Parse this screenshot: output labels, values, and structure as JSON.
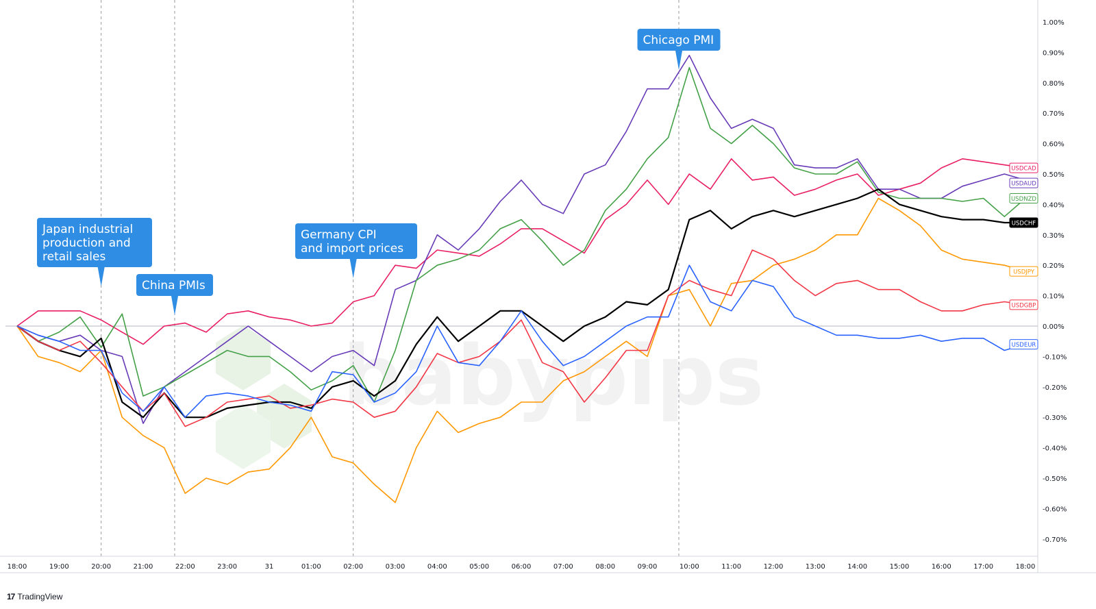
{
  "footer": {
    "brand": "TradingView",
    "logo_glyph": "17"
  },
  "watermark": {
    "text": "babypips"
  },
  "chart_data": {
    "type": "line",
    "title": "",
    "xlabel": "",
    "ylabel": "",
    "ylim": [
      -0.75,
      1.0
    ],
    "grid": false,
    "baseline": 0.0,
    "x_ticks": [
      "18:00",
      "19:00",
      "20:00",
      "21:00",
      "22:00",
      "23:00",
      "31",
      "01:00",
      "02:00",
      "03:00",
      "04:00",
      "05:00",
      "06:00",
      "07:00",
      "08:00",
      "09:00",
      "10:00",
      "11:00",
      "12:00",
      "13:00",
      "14:00",
      "15:00",
      "16:00",
      "17:00",
      "18:00"
    ],
    "y_ticks": [
      {
        "value": 1.0,
        "label": "1.00%"
      },
      {
        "value": 0.9,
        "label": "0.90%"
      },
      {
        "value": 0.8,
        "label": "0.80%"
      },
      {
        "value": 0.7,
        "label": "0.70%"
      },
      {
        "value": 0.6,
        "label": "0.60%"
      },
      {
        "value": 0.5,
        "label": "0.50%"
      },
      {
        "value": 0.4,
        "label": "0.40%"
      },
      {
        "value": 0.3,
        "label": "0.30%"
      },
      {
        "value": 0.2,
        "label": "0.20%"
      },
      {
        "value": 0.1,
        "label": "0.10%"
      },
      {
        "value": 0.0,
        "label": "0.00%"
      },
      {
        "value": -0.1,
        "label": "-0.10%"
      },
      {
        "value": -0.2,
        "label": "-0.20%"
      },
      {
        "value": -0.3,
        "label": "-0.30%"
      },
      {
        "value": -0.4,
        "label": "-0.40%"
      },
      {
        "value": -0.5,
        "label": "-0.50%"
      },
      {
        "value": -0.6,
        "label": "-0.60%"
      },
      {
        "value": -0.7,
        "label": "-0.70%"
      }
    ],
    "events": [
      {
        "x": 2.0,
        "label": [
          "Japan industrial",
          "production and",
          "retail sales"
        ]
      },
      {
        "x": 3.75,
        "label": [
          "China PMIs"
        ]
      },
      {
        "x": 8.0,
        "label": [
          "Germany CPI",
          "and import prices"
        ]
      },
      {
        "x": 15.75,
        "label": [
          "Chicago PMI"
        ]
      }
    ],
    "series": [
      {
        "name": "USDCAD",
        "color": "#e91e63",
        "x": [
          0,
          0.5,
          1,
          1.5,
          2,
          2.5,
          3,
          3.5,
          4,
          4.5,
          5,
          5.5,
          6,
          6.5,
          7,
          7.5,
          8,
          8.5,
          9,
          9.5,
          10,
          10.5,
          11,
          11.5,
          12,
          12.5,
          13,
          13.5,
          14,
          14.5,
          15,
          15.5,
          16,
          16.5,
          17,
          17.5,
          18,
          18.5,
          19,
          19.5,
          20,
          20.5,
          21,
          21.5,
          22,
          22.5,
          23,
          23.5,
          24
        ],
        "y": [
          0.0,
          0.05,
          0.05,
          0.05,
          0.02,
          -0.02,
          -0.06,
          0.0,
          0.01,
          -0.02,
          0.04,
          0.05,
          0.03,
          0.02,
          0.0,
          0.01,
          0.08,
          0.1,
          0.2,
          0.19,
          0.25,
          0.24,
          0.23,
          0.27,
          0.32,
          0.32,
          0.28,
          0.24,
          0.35,
          0.4,
          0.48,
          0.4,
          0.5,
          0.45,
          0.55,
          0.48,
          0.49,
          0.43,
          0.45,
          0.48,
          0.5,
          0.43,
          0.45,
          0.47,
          0.52,
          0.55,
          0.54,
          0.53,
          0.52
        ]
      },
      {
        "name": "USDAUD",
        "color": "#673ab7",
        "x": [
          0,
          0.5,
          1,
          1.5,
          2,
          2.5,
          3,
          3.5,
          4,
          4.5,
          5,
          5.5,
          6,
          6.5,
          7,
          7.5,
          8,
          8.5,
          9,
          9.5,
          10,
          10.5,
          11,
          11.5,
          12,
          12.5,
          13,
          13.5,
          14,
          14.5,
          15,
          15.5,
          16,
          16.5,
          17,
          17.5,
          18,
          18.5,
          19,
          19.5,
          20,
          20.5,
          21,
          21.5,
          22,
          22.5,
          23,
          23.5,
          24
        ],
        "y": [
          0.0,
          -0.03,
          -0.05,
          -0.03,
          -0.08,
          -0.1,
          -0.32,
          -0.2,
          -0.15,
          -0.1,
          -0.05,
          0.0,
          -0.05,
          -0.1,
          -0.15,
          -0.1,
          -0.08,
          -0.13,
          0.12,
          0.15,
          0.3,
          0.25,
          0.32,
          0.41,
          0.48,
          0.4,
          0.37,
          0.5,
          0.53,
          0.64,
          0.78,
          0.78,
          0.89,
          0.75,
          0.65,
          0.68,
          0.65,
          0.53,
          0.52,
          0.52,
          0.55,
          0.45,
          0.45,
          0.42,
          0.42,
          0.46,
          0.48,
          0.5,
          0.48
        ]
      },
      {
        "name": "USDNZD",
        "color": "#43a047",
        "x": [
          0,
          0.5,
          1,
          1.5,
          2,
          2.5,
          3,
          3.5,
          4,
          4.5,
          5,
          5.5,
          6,
          6.5,
          7,
          7.5,
          8,
          8.5,
          9,
          9.5,
          10,
          10.5,
          11,
          11.5,
          12,
          12.5,
          13,
          13.5,
          14,
          14.5,
          15,
          15.5,
          16,
          16.5,
          17,
          17.5,
          18,
          18.5,
          19,
          19.5,
          20,
          20.5,
          21,
          21.5,
          22,
          22.5,
          23,
          23.5,
          24
        ],
        "y": [
          0.0,
          -0.05,
          -0.02,
          0.03,
          -0.07,
          0.04,
          -0.23,
          -0.2,
          -0.16,
          -0.12,
          -0.08,
          -0.1,
          -0.1,
          -0.15,
          -0.21,
          -0.18,
          -0.13,
          -0.25,
          -0.08,
          0.15,
          0.2,
          0.22,
          0.25,
          0.32,
          0.35,
          0.28,
          0.2,
          0.25,
          0.38,
          0.45,
          0.55,
          0.62,
          0.85,
          0.65,
          0.6,
          0.66,
          0.6,
          0.52,
          0.5,
          0.5,
          0.54,
          0.44,
          0.42,
          0.42,
          0.42,
          0.41,
          0.42,
          0.36,
          0.42
        ]
      },
      {
        "name": "USDCHF",
        "color": "#000000",
        "x": [
          0,
          0.5,
          1,
          1.5,
          2,
          2.5,
          3,
          3.5,
          4,
          4.5,
          5,
          5.5,
          6,
          6.5,
          7,
          7.5,
          8,
          8.5,
          9,
          9.5,
          10,
          10.5,
          11,
          11.5,
          12,
          12.5,
          13,
          13.5,
          14,
          14.5,
          15,
          15.5,
          16,
          16.5,
          17,
          17.5,
          18,
          18.5,
          19,
          19.5,
          20,
          20.5,
          21,
          21.5,
          22,
          22.5,
          23,
          23.5,
          24
        ],
        "y": [
          0.0,
          -0.05,
          -0.08,
          -0.1,
          -0.04,
          -0.25,
          -0.3,
          -0.22,
          -0.3,
          -0.3,
          -0.27,
          -0.26,
          -0.25,
          -0.25,
          -0.27,
          -0.2,
          -0.18,
          -0.23,
          -0.18,
          -0.06,
          0.03,
          -0.05,
          0.0,
          0.05,
          0.05,
          0.0,
          -0.05,
          0.0,
          0.03,
          0.08,
          0.07,
          0.12,
          0.35,
          0.38,
          0.32,
          0.36,
          0.38,
          0.36,
          0.38,
          0.4,
          0.42,
          0.45,
          0.4,
          0.38,
          0.36,
          0.35,
          0.35,
          0.34,
          0.34
        ]
      },
      {
        "name": "USDJPY",
        "color": "#ff9800",
        "x": [
          0,
          0.5,
          1,
          1.5,
          2,
          2.5,
          3,
          3.5,
          4,
          4.5,
          5,
          5.5,
          6,
          6.5,
          7,
          7.5,
          8,
          8.5,
          9,
          9.5,
          10,
          10.5,
          11,
          11.5,
          12,
          12.5,
          13,
          13.5,
          14,
          14.5,
          15,
          15.5,
          16,
          16.5,
          17,
          17.5,
          18,
          18.5,
          19,
          19.5,
          20,
          20.5,
          21,
          21.5,
          22,
          22.5,
          23,
          23.5,
          24
        ],
        "y": [
          0.0,
          -0.1,
          -0.12,
          -0.15,
          -0.08,
          -0.3,
          -0.36,
          -0.4,
          -0.55,
          -0.5,
          -0.52,
          -0.48,
          -0.47,
          -0.4,
          -0.3,
          -0.43,
          -0.45,
          -0.52,
          -0.58,
          -0.4,
          -0.28,
          -0.35,
          -0.32,
          -0.3,
          -0.25,
          -0.25,
          -0.18,
          -0.15,
          -0.1,
          -0.05,
          -0.1,
          0.1,
          0.12,
          0.0,
          0.14,
          0.15,
          0.2,
          0.22,
          0.25,
          0.3,
          0.3,
          0.42,
          0.38,
          0.33,
          0.25,
          0.22,
          0.21,
          0.2,
          0.18
        ]
      },
      {
        "name": "USDGBP",
        "color": "#f23645",
        "x": [
          0,
          0.5,
          1,
          1.5,
          2,
          2.5,
          3,
          3.5,
          4,
          4.5,
          5,
          5.5,
          6,
          6.5,
          7,
          7.5,
          8,
          8.5,
          9,
          9.5,
          10,
          10.5,
          11,
          11.5,
          12,
          12.5,
          13,
          13.5,
          14,
          14.5,
          15,
          15.5,
          16,
          16.5,
          17,
          17.5,
          18,
          18.5,
          19,
          19.5,
          20,
          20.5,
          21,
          21.5,
          22,
          22.5,
          23,
          23.5,
          24
        ],
        "y": [
          0.0,
          -0.05,
          -0.08,
          -0.05,
          -0.12,
          -0.2,
          -0.28,
          -0.22,
          -0.33,
          -0.3,
          -0.25,
          -0.24,
          -0.23,
          -0.27,
          -0.26,
          -0.24,
          -0.25,
          -0.3,
          -0.28,
          -0.2,
          -0.09,
          -0.12,
          -0.1,
          -0.05,
          0.02,
          -0.12,
          -0.15,
          -0.25,
          -0.17,
          -0.08,
          -0.08,
          0.1,
          0.15,
          0.12,
          0.1,
          0.25,
          0.22,
          0.15,
          0.1,
          0.14,
          0.15,
          0.12,
          0.12,
          0.08,
          0.05,
          0.05,
          0.07,
          0.08,
          0.07
        ]
      },
      {
        "name": "USDEUR",
        "color": "#2962ff",
        "x": [
          0,
          0.5,
          1,
          1.5,
          2,
          2.5,
          3,
          3.5,
          4,
          4.5,
          5,
          5.5,
          6,
          6.5,
          7,
          7.5,
          8,
          8.5,
          9,
          9.5,
          10,
          10.5,
          11,
          11.5,
          12,
          12.5,
          13,
          13.5,
          14,
          14.5,
          15,
          15.5,
          16,
          16.5,
          17,
          17.5,
          18,
          18.5,
          19,
          19.5,
          20,
          20.5,
          21,
          21.5,
          22,
          22.5,
          23,
          23.5,
          24
        ],
        "y": [
          0.0,
          -0.03,
          -0.05,
          -0.08,
          -0.08,
          -0.22,
          -0.28,
          -0.2,
          -0.3,
          -0.23,
          -0.22,
          -0.23,
          -0.25,
          -0.26,
          -0.28,
          -0.15,
          -0.16,
          -0.25,
          -0.22,
          -0.15,
          0.0,
          -0.12,
          -0.13,
          -0.05,
          0.05,
          -0.05,
          -0.13,
          -0.1,
          -0.05,
          0.0,
          0.03,
          0.03,
          0.2,
          0.08,
          0.05,
          0.15,
          0.13,
          0.03,
          0.0,
          -0.03,
          -0.03,
          -0.04,
          -0.04,
          -0.03,
          -0.05,
          -0.04,
          -0.04,
          -0.08,
          -0.06
        ]
      }
    ]
  }
}
